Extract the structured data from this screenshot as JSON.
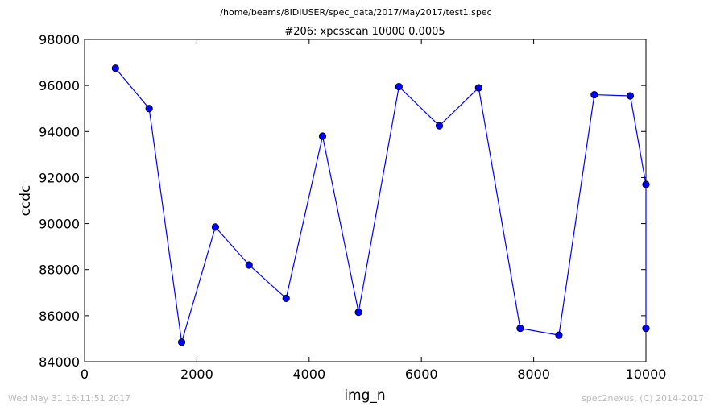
{
  "header": {
    "file_path": "/home/beams/8IDIUSER/spec_data/2017/May2017/test1.spec"
  },
  "footer": {
    "timestamp": "Wed May 31 16:11:51 2017",
    "credit": "spec2nexus, (C) 2014-2017"
  },
  "colors": {
    "series": "#0000ff",
    "axes": "#000000",
    "footer_text": "#bbbbbb"
  },
  "chart_data": {
    "type": "line",
    "title": "#206: xpcsscan 10000 0.0005",
    "xlabel": "img_n",
    "ylabel": "ccdc",
    "xlim": [
      0,
      10000
    ],
    "ylim": [
      84000,
      98000
    ],
    "x_ticks": [
      0,
      2000,
      4000,
      6000,
      8000,
      10000
    ],
    "y_ticks": [
      84000,
      86000,
      88000,
      90000,
      92000,
      94000,
      96000,
      98000
    ],
    "grid": false,
    "marker": "circle",
    "series": [
      {
        "x": [
          550,
          1150,
          1730,
          2330,
          2930,
          3590,
          4240,
          4880,
          5600,
          6320,
          7020,
          7760,
          8450,
          9080,
          9720,
          10000,
          10000
        ],
        "y": [
          96750,
          95000,
          84850,
          89850,
          88200,
          86750,
          93800,
          86150,
          95950,
          94250,
          95900,
          85450,
          85150,
          95600,
          95550,
          91700,
          85450
        ]
      }
    ]
  }
}
